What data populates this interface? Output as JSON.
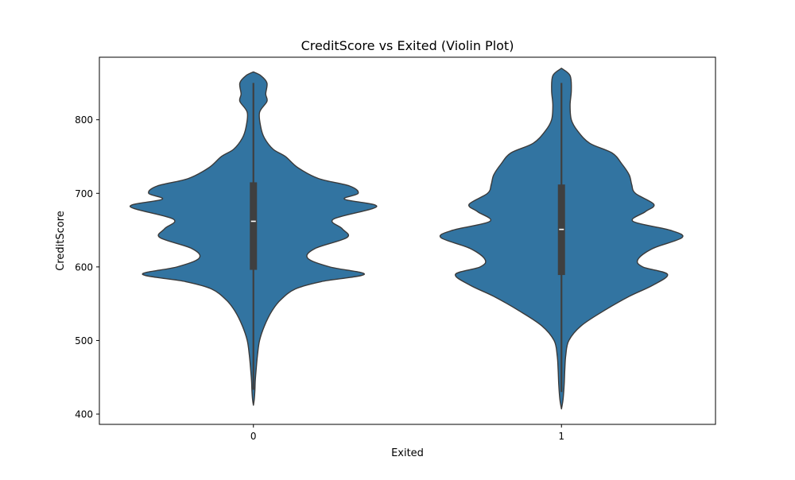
{
  "chart_data": {
    "type": "violin",
    "title": "CreditScore vs Exited (Violin Plot)",
    "xlabel": "Exited",
    "ylabel": "CreditScore",
    "categories": [
      "0",
      "1"
    ],
    "ylim": [
      386,
      885
    ],
    "yticks": [
      400,
      500,
      600,
      700,
      800
    ],
    "grid": false,
    "legend": "none",
    "colors": {
      "fill": "#3274a1",
      "stroke": "#3a3a3a",
      "box": "#3f3f3f",
      "median": "#ffffff"
    },
    "violins": [
      {
        "category": "0",
        "min": 412,
        "max": 865,
        "whisker_low": 433,
        "whisker_high": 850,
        "q1": 596,
        "median": 662,
        "q3": 715,
        "density_profile": [
          [
            412,
            0.0
          ],
          [
            420,
            0.007
          ],
          [
            432,
            0.012
          ],
          [
            445,
            0.015
          ],
          [
            460,
            0.022
          ],
          [
            480,
            0.033
          ],
          [
            500,
            0.05
          ],
          [
            520,
            0.09
          ],
          [
            540,
            0.15
          ],
          [
            555,
            0.22
          ],
          [
            570,
            0.34
          ],
          [
            580,
            0.55
          ],
          [
            590,
            0.9
          ],
          [
            600,
            0.62
          ],
          [
            612,
            0.44
          ],
          [
            625,
            0.5
          ],
          [
            640,
            0.76
          ],
          [
            652,
            0.72
          ],
          [
            665,
            0.65
          ],
          [
            682,
            1.0
          ],
          [
            692,
            0.74
          ],
          [
            700,
            0.85
          ],
          [
            710,
            0.78
          ],
          [
            720,
            0.53
          ],
          [
            735,
            0.36
          ],
          [
            750,
            0.26
          ],
          [
            760,
            0.16
          ],
          [
            775,
            0.09
          ],
          [
            790,
            0.06
          ],
          [
            810,
            0.05
          ],
          [
            825,
            0.11
          ],
          [
            835,
            0.1
          ],
          [
            850,
            0.11
          ],
          [
            860,
            0.06
          ],
          [
            865,
            0.0
          ]
        ]
      },
      {
        "category": "1",
        "min": 407,
        "max": 870,
        "whisker_low": 430,
        "whisker_high": 850,
        "q1": 589,
        "median": 651,
        "q3": 712,
        "density_profile": [
          [
            407,
            0.0
          ],
          [
            420,
            0.013
          ],
          [
            440,
            0.022
          ],
          [
            460,
            0.027
          ],
          [
            480,
            0.035
          ],
          [
            500,
            0.06
          ],
          [
            520,
            0.16
          ],
          [
            540,
            0.34
          ],
          [
            560,
            0.55
          ],
          [
            575,
            0.74
          ],
          [
            590,
            0.86
          ],
          [
            600,
            0.66
          ],
          [
            610,
            0.62
          ],
          [
            625,
            0.74
          ],
          [
            640,
            0.98
          ],
          [
            650,
            0.88
          ],
          [
            662,
            0.58
          ],
          [
            675,
            0.68
          ],
          [
            685,
            0.75
          ],
          [
            700,
            0.6
          ],
          [
            712,
            0.57
          ],
          [
            725,
            0.55
          ],
          [
            740,
            0.49
          ],
          [
            755,
            0.41
          ],
          [
            768,
            0.23
          ],
          [
            785,
            0.13
          ],
          [
            800,
            0.08
          ],
          [
            820,
            0.07
          ],
          [
            840,
            0.08
          ],
          [
            860,
            0.07
          ],
          [
            870,
            0.0
          ]
        ]
      }
    ]
  }
}
